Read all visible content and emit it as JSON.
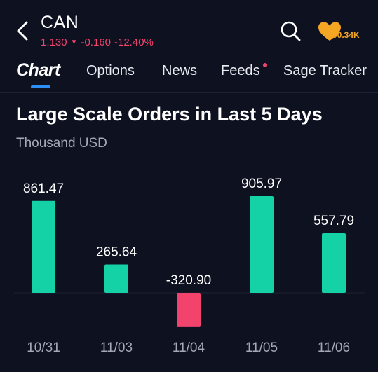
{
  "header": {
    "ticker": "CAN",
    "price": "1.130",
    "change": "-0.160",
    "change_pct": "-12.40%",
    "favorites": "90.34K"
  },
  "tabs": [
    {
      "label": "Chart"
    },
    {
      "label": "Options"
    },
    {
      "label": "News"
    },
    {
      "label": "Feeds"
    },
    {
      "label": "Sage Tracker"
    }
  ],
  "card": {
    "title": "Large Scale Orders in Last 5 Days",
    "subtitle": "Thousand USD"
  },
  "colors": {
    "positive": "#14d2a5",
    "negative": "#f2436c",
    "accent": "#2f8ef5",
    "favorite": "#f5a623"
  },
  "chart_data": {
    "type": "bar",
    "categories": [
      "10/31",
      "11/03",
      "11/04",
      "11/05",
      "11/06"
    ],
    "values": [
      861.47,
      265.64,
      -320.9,
      905.97,
      557.79
    ],
    "labels": [
      "861.47",
      "265.64",
      "-320.90",
      "905.97",
      "557.79"
    ],
    "title": "Large Scale Orders in Last 5 Days",
    "ylabel": "Thousand USD"
  }
}
